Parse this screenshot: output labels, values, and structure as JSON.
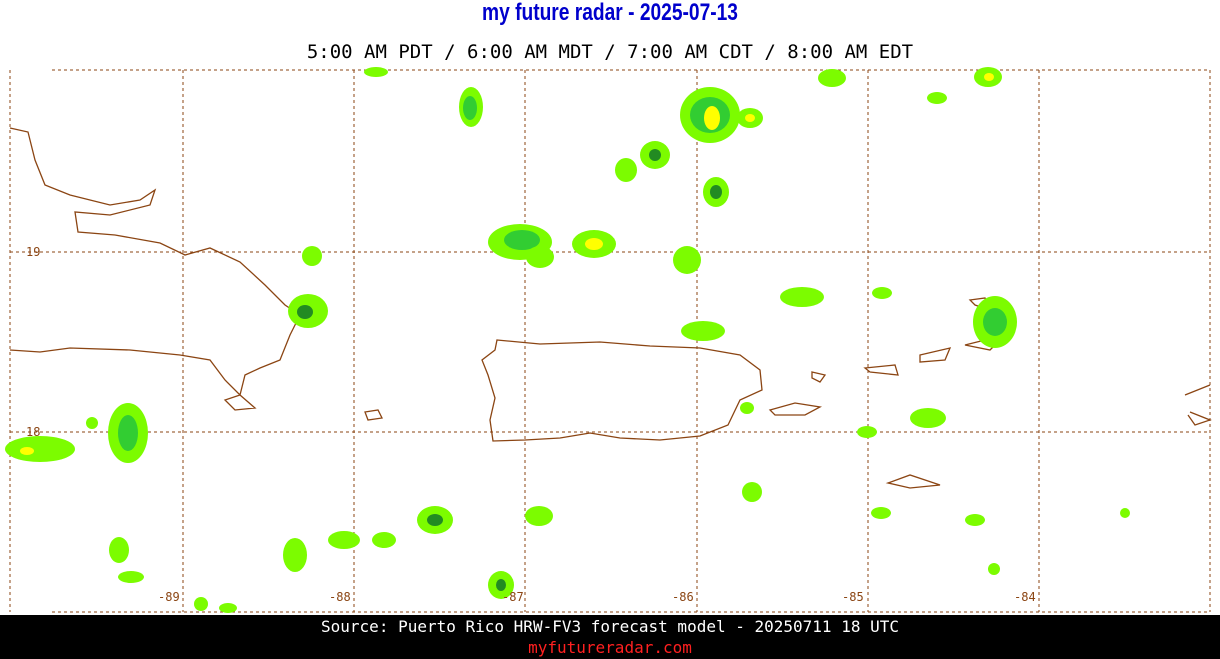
{
  "header": {
    "title": "my future radar - 2025-07-13",
    "subtitle": "5:00 AM PDT /  6:00 AM MDT /  7:00 AM CDT /  8:00 AM EDT"
  },
  "map": {
    "lat_labels": [
      "19",
      "18"
    ],
    "lon_labels": [
      "-89",
      "-88",
      "-87",
      "-86",
      "-85",
      "-84"
    ]
  },
  "footer": {
    "source": "Source: Puerto Rico HRW-FV3 forecast model - 20250711 18 UTC",
    "site": "myfutureradar.com"
  }
}
